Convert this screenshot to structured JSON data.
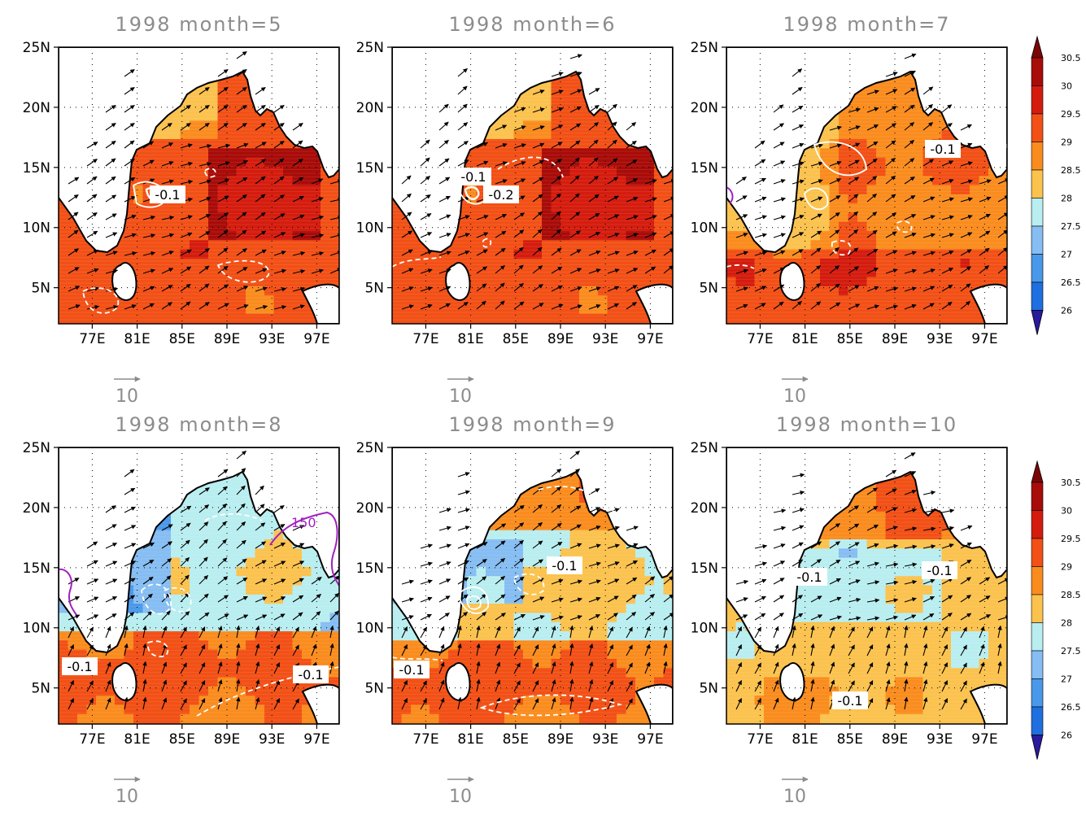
{
  "panels": [
    {
      "title": "1998  month=5",
      "regime": 0,
      "labels": [
        {
          "text": "-0.1"
        }
      ],
      "pink": []
    },
    {
      "title": "1998  month=6",
      "regime": 0,
      "labels": [
        {
          "text": "-0.1"
        },
        {
          "text": "-0.2"
        }
      ],
      "pink": []
    },
    {
      "title": "1998  month=7",
      "regime": 1,
      "labels": [
        {
          "text": "-0.1"
        }
      ],
      "pink": []
    },
    {
      "title": "1998  month=8",
      "regime": 2,
      "labels": [
        {
          "text": "-0.1"
        },
        {
          "text": "-0.1"
        }
      ],
      "pink": [
        {
          "text": "150"
        }
      ]
    },
    {
      "title": "1998  month=9",
      "regime": 3,
      "labels": [
        {
          "text": "-0.1"
        },
        {
          "text": "-0.1"
        }
      ],
      "pink": []
    },
    {
      "title": "1998  month=10",
      "regime": 4,
      "labels": [
        {
          "text": "-0.1"
        },
        {
          "text": "-0.1"
        },
        {
          "text": "-0.1"
        }
      ],
      "pink": []
    }
  ],
  "lat_ticks": [
    "25N",
    "20N",
    "15N",
    "10N",
    "5N"
  ],
  "lon_ticks": [
    "77E",
    "81E",
    "85E",
    "89E",
    "93E",
    "97E"
  ],
  "reference_vector": "10",
  "colorbar": {
    "levels": [
      "26",
      "26.5",
      "27",
      "27.5",
      "28",
      "28.5",
      "29",
      "29.5",
      "30",
      "30.5"
    ],
    "colors": [
      "#2a1a9e",
      "#1f6fe0",
      "#4a98ea",
      "#86bdf2",
      "#b9eef0",
      "#fbc24e",
      "#fa8c1e",
      "#f25016",
      "#d41c0e",
      "#a80c08",
      "#7a0606"
    ]
  },
  "colors": {
    "land": "#ffffff",
    "title": "#8c8c8c",
    "contour": "#ffffff",
    "precip_contour": "#a020c0"
  }
}
